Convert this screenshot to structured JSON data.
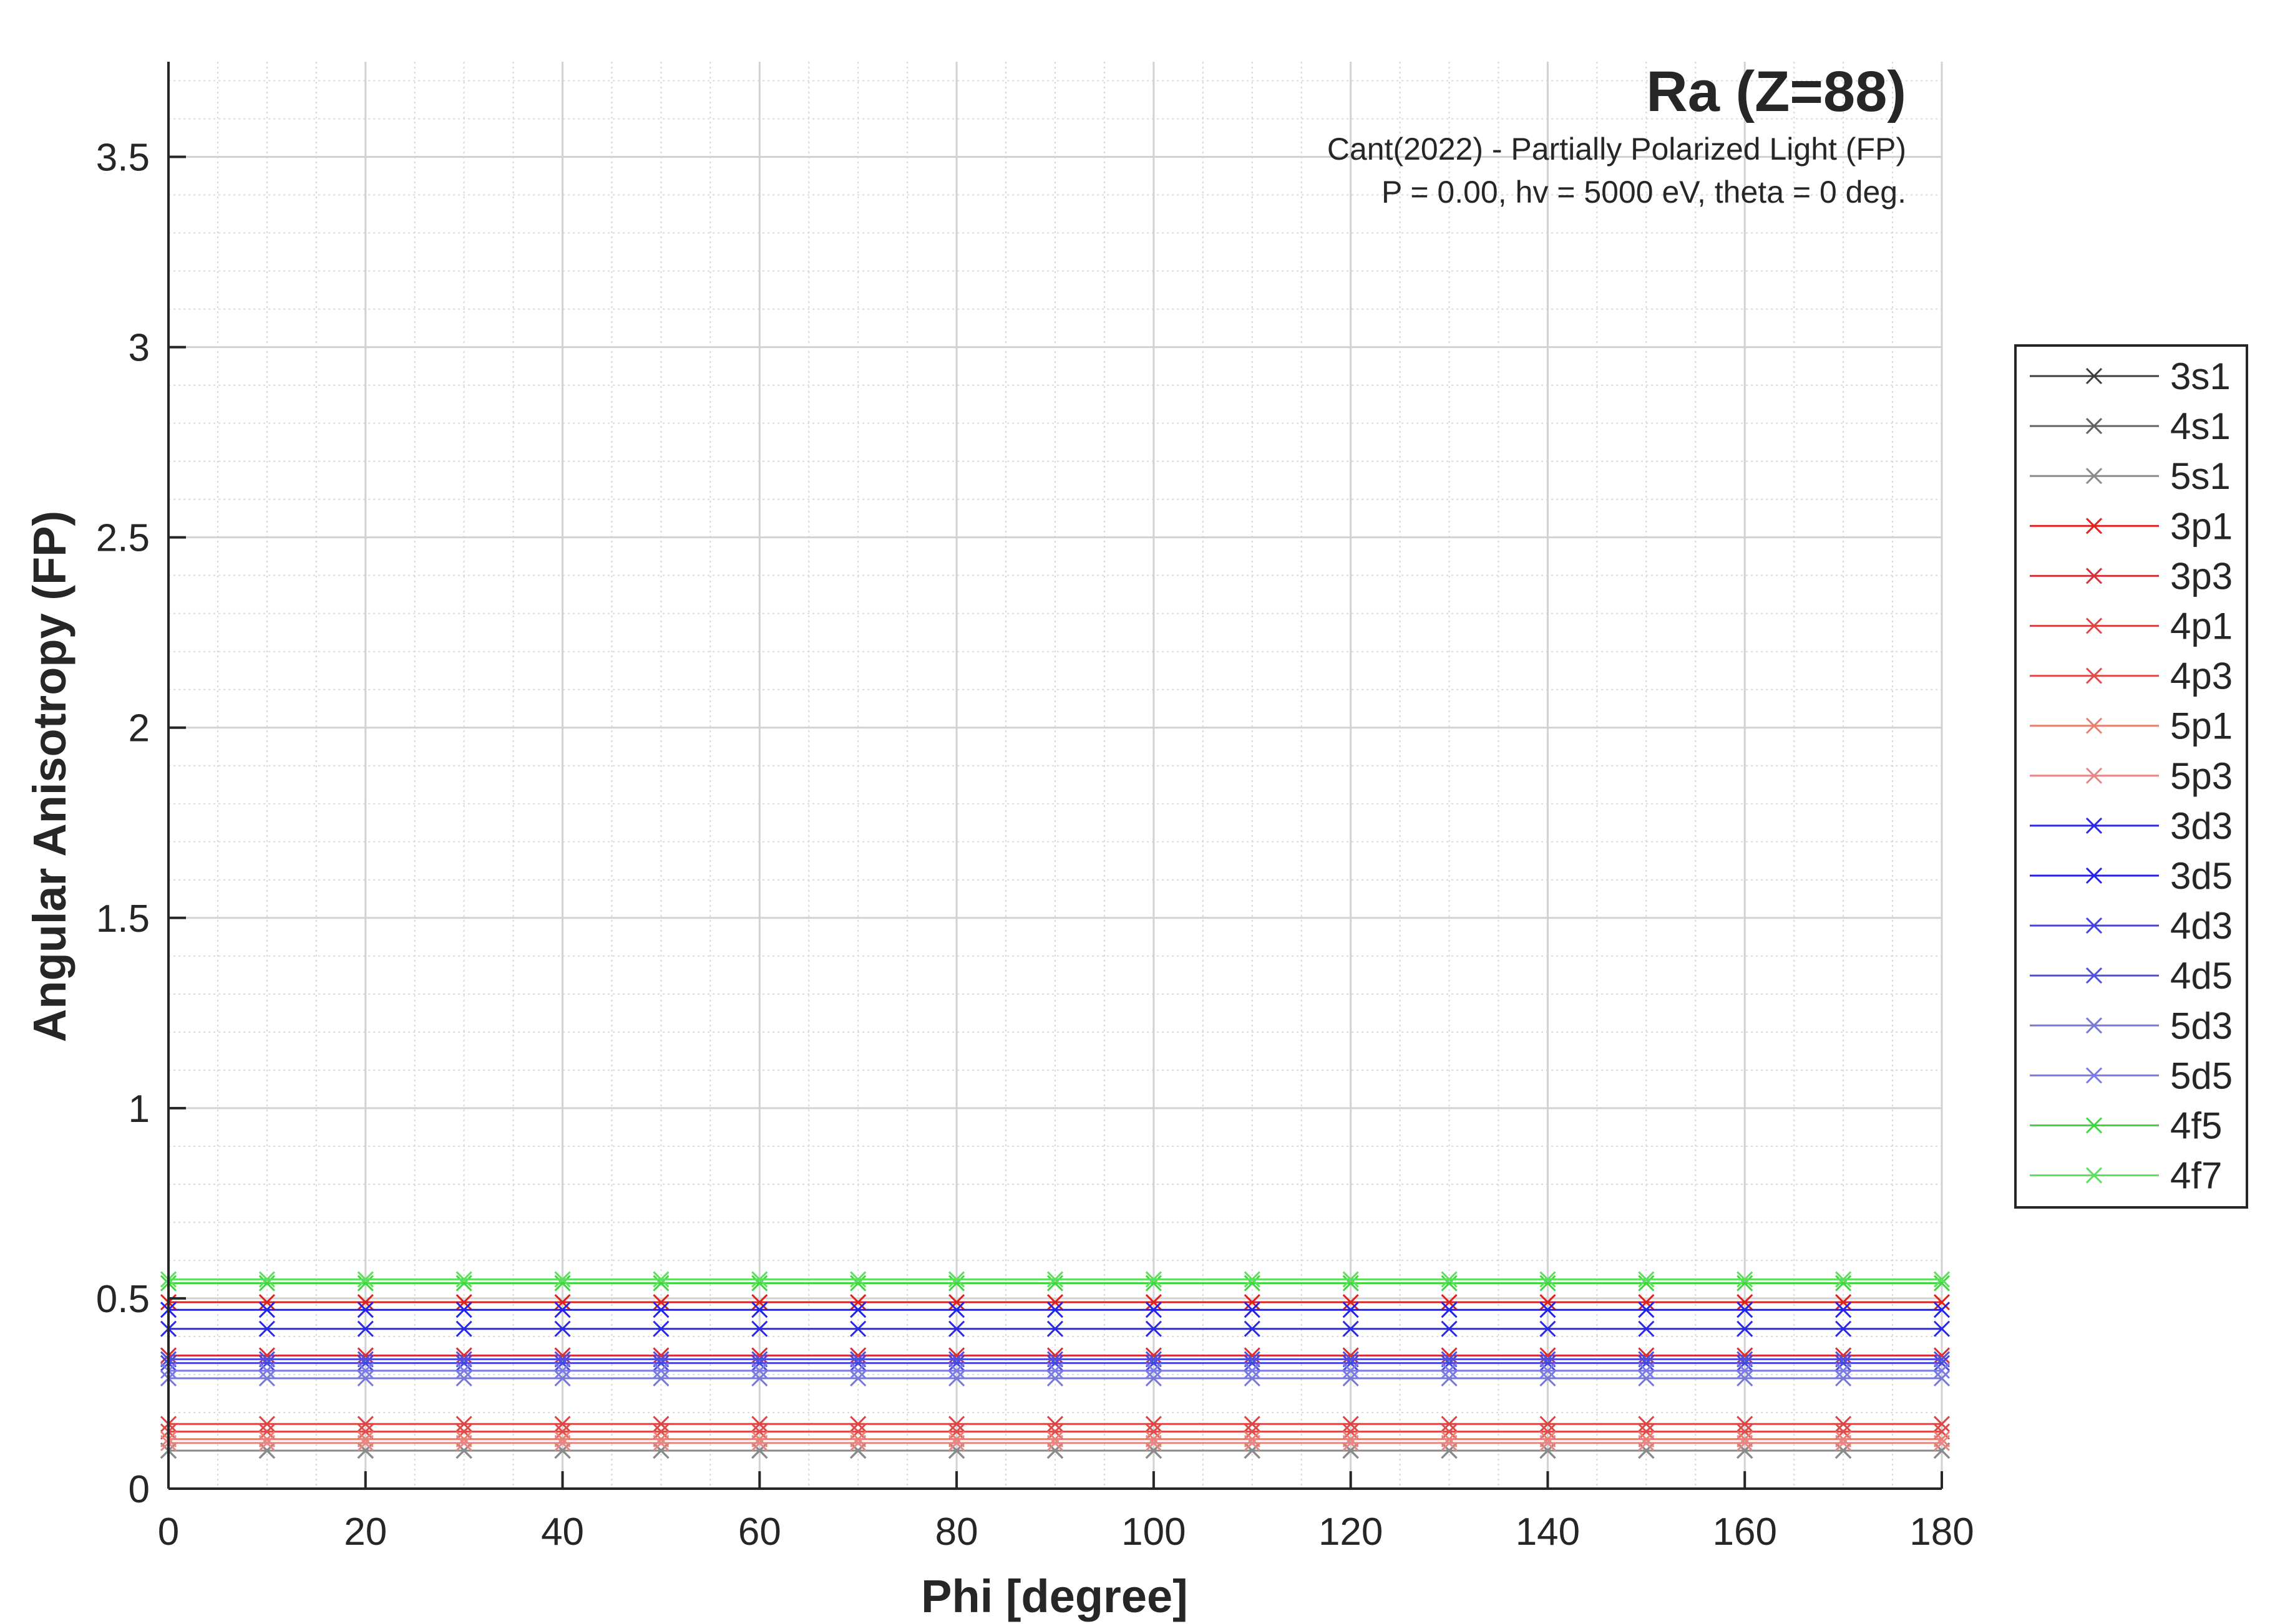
{
  "chart_data": {
    "type": "line",
    "title": "Ra (Z=88)",
    "subtitle_lines": [
      "Cant(2022) - Partially Polarized Light (FP)",
      "P = 0.00, hv = 5000 eV, theta = 0 deg."
    ],
    "xlabel": "Phi [degree]",
    "ylabel": "Angular Anisotropy (FP)",
    "xlim": [
      0,
      180
    ],
    "ylim": [
      0,
      3.75
    ],
    "xticks": [
      0,
      20,
      40,
      60,
      80,
      100,
      120,
      140,
      160,
      180
    ],
    "xtick_labels": [
      "0",
      "20",
      "40",
      "60",
      "80",
      "100",
      "120",
      "140",
      "160",
      "180"
    ],
    "yticks": [
      0,
      0.5,
      1,
      1.5,
      2,
      2.5,
      3,
      3.5
    ],
    "ytick_labels": [
      "0",
      "0.5",
      "1",
      "1.5",
      "2",
      "2.5",
      "3",
      "3.5"
    ],
    "grid": true,
    "minor_grid": true,
    "legend_position": "right",
    "marker": "x",
    "x": [
      0,
      10,
      20,
      30,
      40,
      50,
      60,
      70,
      80,
      90,
      100,
      110,
      120,
      130,
      140,
      150,
      160,
      170,
      180
    ],
    "series": [
      {
        "name": "3s1",
        "color": "#3c3c3c",
        "value": 0.1
      },
      {
        "name": "4s1",
        "color": "#616161",
        "value": 0.1
      },
      {
        "name": "5s1",
        "color": "#8a8a8a",
        "value": 0.1
      },
      {
        "name": "3p1",
        "color": "#e0211d",
        "value": 0.49
      },
      {
        "name": "3p3",
        "color": "#d6303a",
        "value": 0.35
      },
      {
        "name": "4p1",
        "color": "#dd4444",
        "value": 0.17
      },
      {
        "name": "4p3",
        "color": "#e04c4c",
        "value": 0.15
      },
      {
        "name": "5p1",
        "color": "#e87f6f",
        "value": 0.13
      },
      {
        "name": "5p3",
        "color": "#e88686",
        "value": 0.12
      },
      {
        "name": "3d3",
        "color": "#2a2ae6",
        "value": 0.42
      },
      {
        "name": "3d5",
        "color": "#2222ee",
        "value": 0.47
      },
      {
        "name": "4d3",
        "color": "#4444e0",
        "value": 0.33
      },
      {
        "name": "4d5",
        "color": "#5050e0",
        "value": 0.34
      },
      {
        "name": "5d3",
        "color": "#7878d8",
        "value": 0.29
      },
      {
        "name": "5d5",
        "color": "#7a7ae8",
        "value": 0.31
      },
      {
        "name": "4f5",
        "color": "#3ed83e",
        "value": 0.54
      },
      {
        "name": "4f7",
        "color": "#5be05b",
        "value": 0.55
      }
    ]
  }
}
